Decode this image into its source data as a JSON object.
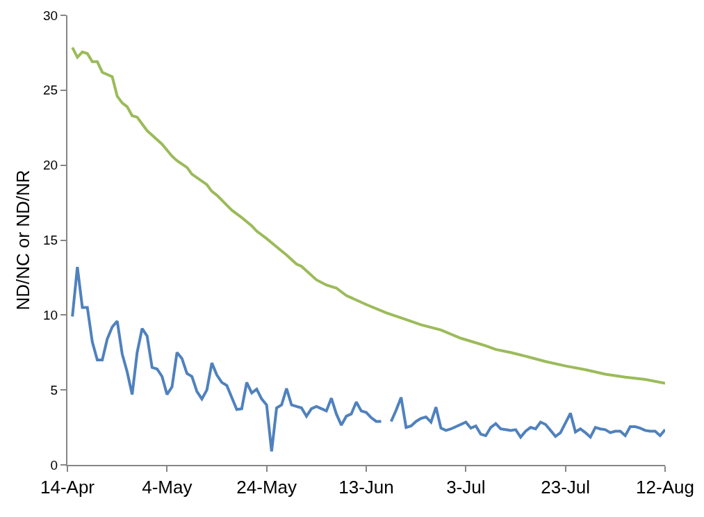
{
  "chart_data": {
    "type": "line",
    "ylabel": "ND/NC or ND/NR",
    "x": [
      "--04-15",
      "--04-16",
      "--04-17",
      "--04-18",
      "--04-19",
      "--04-20",
      "--04-21",
      "--04-22",
      "--04-23",
      "--04-24",
      "--04-25",
      "--04-26",
      "--04-27",
      "--04-28",
      "--04-29",
      "--04-30",
      "--05-01",
      "--05-02",
      "--05-03",
      "--05-04",
      "--05-05",
      "--05-06",
      "--05-07",
      "--05-08",
      "--05-09",
      "--05-10",
      "--05-11",
      "--05-12",
      "--05-13",
      "--05-14",
      "--05-15",
      "--05-16",
      "--05-17",
      "--05-18",
      "--05-19",
      "--05-20",
      "--05-21",
      "--05-22",
      "--05-23",
      "--05-24",
      "--05-25",
      "--05-26",
      "--05-27",
      "--05-28",
      "--05-29",
      "--05-30",
      "--05-31",
      "--06-01",
      "--06-02",
      "--06-03",
      "--06-04",
      "--06-05",
      "--06-06",
      "--06-07",
      "--06-08",
      "--06-09",
      "--06-10",
      "--06-11",
      "--06-12",
      "--06-13",
      "--06-14",
      "--06-15",
      "--06-16",
      "--06-17",
      "--06-18",
      "--06-19",
      "--06-20",
      "--06-21",
      "--06-22",
      "--06-23",
      "--06-24",
      "--06-25",
      "--06-26",
      "--06-27",
      "--06-28",
      "--06-29",
      "--06-30",
      "--07-01",
      "--07-02",
      "--07-03",
      "--07-04",
      "--07-05",
      "--07-06",
      "--07-07",
      "--07-08",
      "--07-09",
      "--07-10",
      "--07-11",
      "--07-12",
      "--07-13",
      "--07-14",
      "--07-15",
      "--07-16",
      "--07-17",
      "--07-18",
      "--07-19",
      "--07-20",
      "--07-21",
      "--07-22",
      "--07-23",
      "--07-24",
      "--07-25",
      "--07-26",
      "--07-27",
      "--07-28",
      "--07-29",
      "--07-30",
      "--07-31",
      "--08-01",
      "--08-02",
      "--08-03",
      "--08-04",
      "--08-05",
      "--08-06",
      "--08-07",
      "--08-08",
      "--08-09",
      "--08-10",
      "--08-11",
      "--08-12"
    ],
    "series": [
      {
        "color": "#9bbb59",
        "x": [
          "--04-15",
          "--04-16",
          "--04-17",
          "--04-18",
          "--04-19",
          "--04-20",
          "--04-21",
          "--04-23",
          "--04-24",
          "--04-25",
          "--04-26",
          "--04-27",
          "--04-28",
          "--04-30",
          "--05-03",
          "--05-05",
          "--05-06",
          "--05-08",
          "--05-09",
          "--05-12",
          "--05-13",
          "--05-14",
          "--05-17",
          "--05-19",
          "--05-21",
          "--05-22",
          "--05-24",
          "--05-26",
          "--05-28",
          "--05-30",
          "--05-31",
          "--06-01",
          "--06-03",
          "--06-05",
          "--06-07",
          "--06-09",
          "--06-11",
          "--06-13",
          "--06-17",
          "--06-21",
          "--06-24",
          "--06-28",
          "--07-02",
          "--07-05",
          "--07-07",
          "--07-09",
          "--07-12",
          "--07-15",
          "--07-19",
          "--07-23",
          "--07-27",
          "--07-31",
          "--08-04",
          "--08-08",
          "--08-12"
        ],
        "values": [
          27.85,
          27.2,
          27.55,
          27.45,
          26.9,
          26.9,
          26.2,
          25.9,
          24.6,
          24.15,
          23.9,
          23.3,
          23.2,
          22.3,
          21.4,
          20.6,
          20.3,
          19.85,
          19.4,
          18.7,
          18.25,
          18.0,
          17.0,
          16.5,
          15.95,
          15.6,
          15.1,
          14.55,
          14.0,
          13.4,
          13.25,
          12.95,
          12.35,
          12.0,
          11.8,
          11.3,
          11.0,
          10.7,
          10.15,
          9.7,
          9.35,
          9.0,
          8.45,
          8.15,
          7.95,
          7.7,
          7.5,
          7.25,
          6.9,
          6.6,
          6.35,
          6.05,
          5.85,
          5.7,
          5.45
        ]
      },
      {
        "color": "#4f81bd",
        "values": [
          9.9,
          13.2,
          10.5,
          10.5,
          8.2,
          7.0,
          7.0,
          8.4,
          9.2,
          9.6,
          7.4,
          6.2,
          4.7,
          7.5,
          9.1,
          8.6,
          6.5,
          6.4,
          5.9,
          4.7,
          5.2,
          7.5,
          7.1,
          6.1,
          5.9,
          4.9,
          4.4,
          5.0,
          6.8,
          6.0,
          5.5,
          5.3,
          4.5,
          3.7,
          3.75,
          5.5,
          4.8,
          5.05,
          4.4,
          4.0,
          0.9,
          3.8,
          4.0,
          5.1,
          4.0,
          3.9,
          3.8,
          3.25,
          3.75,
          3.9,
          3.75,
          3.6,
          4.45,
          3.4,
          2.65,
          3.25,
          3.4,
          4.2,
          3.6,
          3.5,
          3.15,
          2.9,
          2.9,
          null,
          2.9,
          3.65,
          4.5,
          2.5,
          2.6,
          2.9,
          3.1,
          3.2,
          2.85,
          3.85,
          2.45,
          2.3,
          2.4,
          2.55,
          2.7,
          2.85,
          2.45,
          2.6,
          2.05,
          1.95,
          2.5,
          2.75,
          2.4,
          2.35,
          2.3,
          2.35,
          1.85,
          2.25,
          2.5,
          2.4,
          2.85,
          2.7,
          2.3,
          1.9,
          2.15,
          2.8,
          3.45,
          2.2,
          2.4,
          2.15,
          1.85,
          2.5,
          2.4,
          2.35,
          2.15,
          2.25,
          2.25,
          1.95,
          2.55,
          2.55,
          2.45,
          2.3,
          2.25,
          2.25,
          1.95,
          2.35
        ]
      }
    ],
    "xlim": [
      "--04-14",
      "--08-12"
    ],
    "xticks": [
      {
        "value": "--04-14",
        "label": "14-Apr"
      },
      {
        "value": "--05-04",
        "label": "4-May"
      },
      {
        "value": "--05-24",
        "label": "24-May"
      },
      {
        "value": "--06-13",
        "label": "13-Jun"
      },
      {
        "value": "--07-03",
        "label": "3-Jul"
      },
      {
        "value": "--07-23",
        "label": "23-Jul"
      },
      {
        "value": "--08-12",
        "label": "12-Aug"
      }
    ],
    "ylim": [
      0,
      30
    ],
    "yticks": [
      0,
      5,
      10,
      15,
      20,
      25,
      30
    ]
  }
}
